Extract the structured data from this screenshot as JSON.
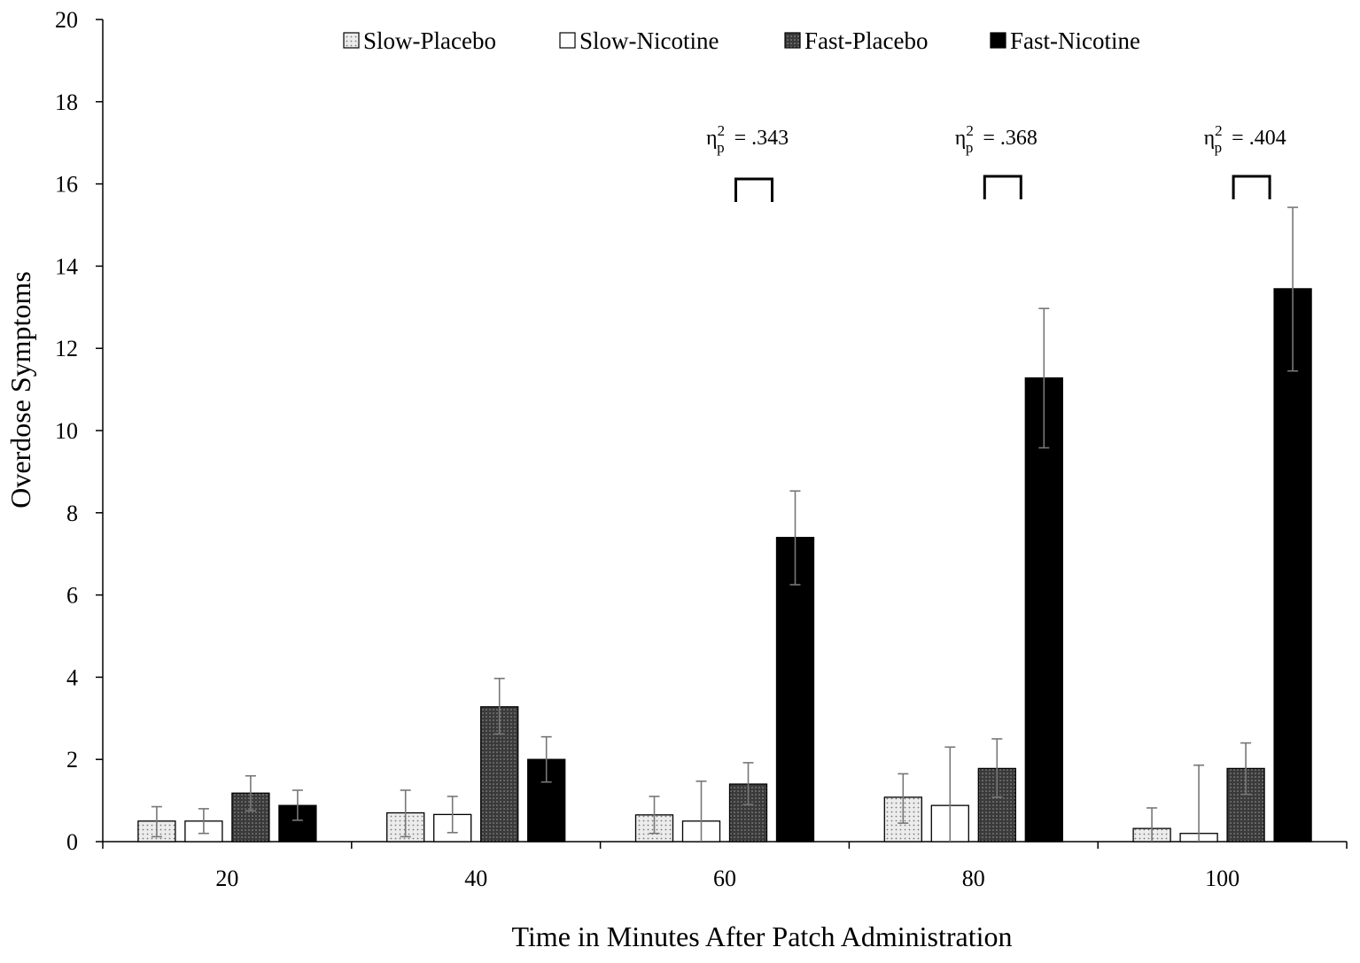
{
  "chart_data": {
    "type": "bar",
    "xlabel": "Time in Minutes After Patch Administration",
    "ylabel": "Overdose Symptoms",
    "ylim": [
      0,
      20
    ],
    "yticks": [
      0,
      2,
      4,
      6,
      8,
      10,
      12,
      14,
      16,
      18,
      20
    ],
    "categories": [
      "20",
      "40",
      "60",
      "80",
      "100"
    ],
    "legend_position": "top",
    "series": [
      {
        "name": "Slow-Placebo",
        "pattern": "light-dotted",
        "color": "#e4e4e4",
        "values": [
          0.5,
          0.7,
          0.65,
          1.08,
          0.32
        ],
        "err_low": [
          0.12,
          0.12,
          0.2,
          0.45,
          0.0
        ],
        "err_high": [
          0.85,
          1.25,
          1.1,
          1.65,
          0.82
        ]
      },
      {
        "name": "Slow-Nicotine",
        "pattern": "white",
        "color": "#ffffff",
        "values": [
          0.5,
          0.66,
          0.5,
          0.88,
          0.2
        ],
        "err_low": [
          0.2,
          0.22,
          0.0,
          0.0,
          0.0
        ],
        "err_high": [
          0.8,
          1.1,
          1.47,
          2.3,
          1.86
        ]
      },
      {
        "name": "Fast-Placebo",
        "pattern": "dark-dotted",
        "color": "#4a4a4a",
        "values": [
          1.18,
          3.28,
          1.4,
          1.78,
          1.78
        ],
        "err_low": [
          0.75,
          2.62,
          0.9,
          1.08,
          1.15
        ],
        "err_high": [
          1.6,
          3.97,
          1.92,
          2.5,
          2.4
        ]
      },
      {
        "name": "Fast-Nicotine",
        "pattern": "black",
        "color": "#000000",
        "values": [
          0.88,
          2.0,
          7.4,
          11.28,
          13.45
        ],
        "err_low": [
          0.52,
          1.45,
          6.25,
          9.58,
          11.45
        ],
        "err_high": [
          1.25,
          2.55,
          8.53,
          12.97,
          15.43
        ]
      }
    ],
    "annotations": [
      {
        "category": "60",
        "text": "= .343"
      },
      {
        "category": "80",
        "text": "= .368"
      },
      {
        "category": "100",
        "text": "= .404"
      }
    ],
    "annotation_symbol": "η",
    "annotation_superscript": "2",
    "annotation_subscript": "p"
  }
}
